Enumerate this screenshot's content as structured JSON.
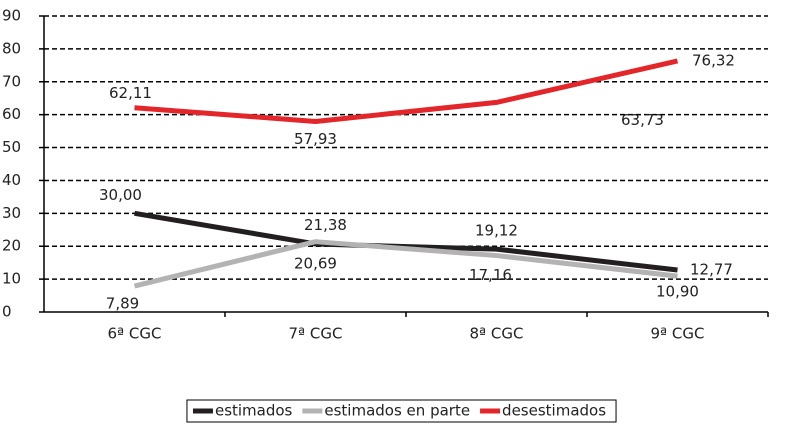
{
  "chart_data": {
    "type": "line",
    "categories": [
      "6ª CGC",
      "7ª CGC",
      "8ª CGC",
      "9ª CGC"
    ],
    "series": [
      {
        "name": "estimados",
        "color": "#231f20",
        "values": [
          30.0,
          20.69,
          19.12,
          12.77
        ],
        "value_labels": [
          "30,00",
          "20,69",
          "19,12",
          "12,77"
        ]
      },
      {
        "name": "estimados en parte",
        "color": "#b3b3b3",
        "values": [
          7.89,
          21.38,
          17.16,
          10.9
        ],
        "value_labels": [
          "7,89",
          "21,38",
          "17,16",
          "10,90"
        ]
      },
      {
        "name": "desestimados",
        "color": "#e3262a",
        "values": [
          62.11,
          57.93,
          63.73,
          76.32
        ],
        "value_labels": [
          "62,11",
          "57,93",
          "63,73",
          "76,32"
        ]
      }
    ],
    "ylim": [
      0,
      90
    ],
    "yticks": [
      0,
      10,
      20,
      30,
      40,
      50,
      60,
      70,
      80,
      90
    ],
    "grid": true,
    "legend": "bottom"
  }
}
